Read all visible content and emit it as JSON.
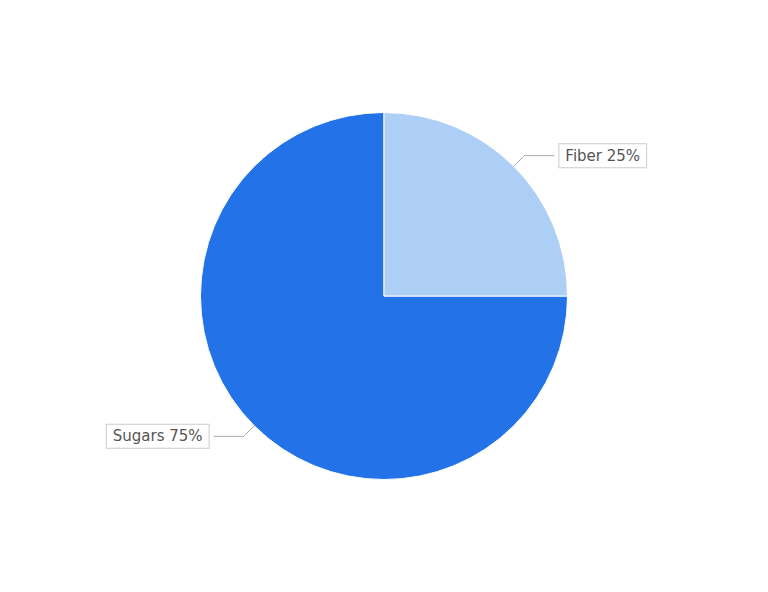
{
  "chart_data": {
    "type": "pie",
    "categories": [
      "Sugars 75%",
      "Fiber 25%"
    ],
    "values": [
      75,
      25
    ],
    "colors": [
      "#2472e8",
      "#aecff5"
    ],
    "legend": false
  }
}
